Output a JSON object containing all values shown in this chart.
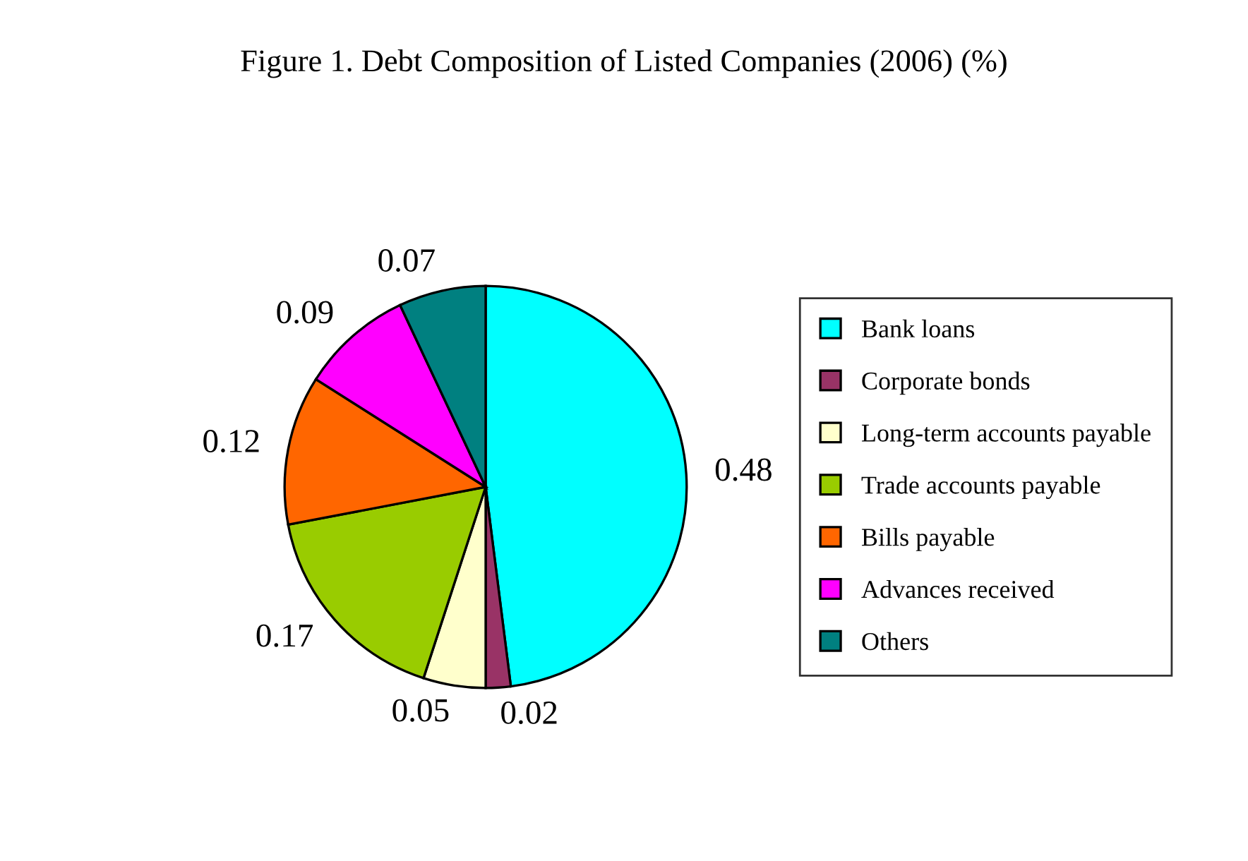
{
  "chart_data": {
    "type": "pie",
    "title": "Figure 1. Debt Composition of Listed Companies (2006) (%)",
    "categories": [
      "Bank loans",
      "Corporate bonds",
      "Long-term accounts payable",
      "Trade accounts payable",
      "Bills payable",
      "Advances received",
      "Others"
    ],
    "values": [
      0.48,
      0.02,
      0.05,
      0.17,
      0.12,
      0.09,
      0.07
    ],
    "colors": [
      "#00ffff",
      "#993366",
      "#ffffcc",
      "#99cc00",
      "#ff6600",
      "#ff00ff",
      "#008080"
    ],
    "data_labels": true,
    "legend": "right"
  }
}
